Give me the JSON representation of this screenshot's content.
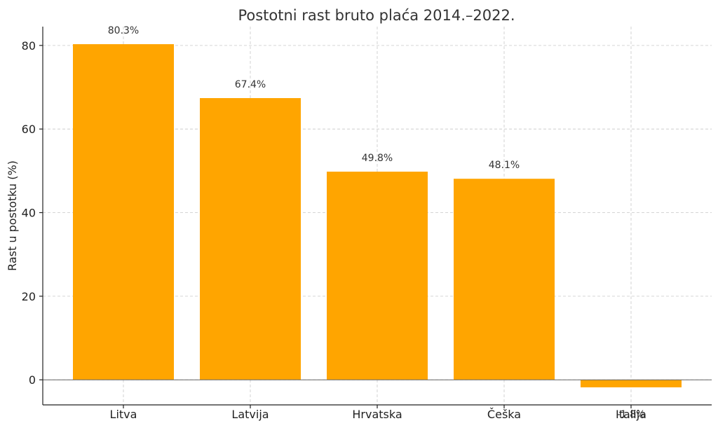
{
  "chart_data": {
    "type": "bar",
    "title": "Postotni rast bruto plaća 2014.–2022.",
    "xlabel": "",
    "ylabel": "Rast u postotku (%)",
    "categories": [
      "Litva",
      "Latvija",
      "Hrvatska",
      "Češka",
      "Italija"
    ],
    "values": [
      80.3,
      67.4,
      49.8,
      48.1,
      -1.8
    ],
    "data_labels": [
      "80.3%",
      "67.4%",
      "49.8%",
      "48.1%",
      "-1.8%"
    ],
    "ylim": [
      -6,
      84.5
    ],
    "yticks": [
      0,
      20,
      40,
      60,
      80
    ],
    "grid": true,
    "bar_color": "#FFA500"
  }
}
